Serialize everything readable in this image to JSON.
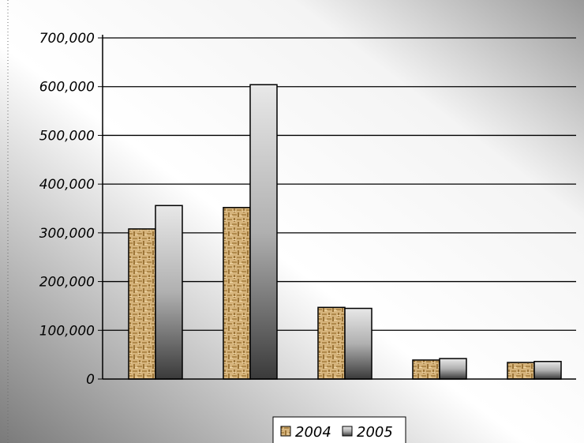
{
  "chart_data": {
    "type": "bar",
    "title": "",
    "xlabel": "",
    "ylabel": "",
    "categories": [
      "",
      "",
      "",
      "",
      ""
    ],
    "series": [
      {
        "name": "2004",
        "values": [
          308000,
          352000,
          147000,
          39000,
          34000
        ],
        "color": "#c9a46b"
      },
      {
        "name": "2005",
        "values": [
          356000,
          604000,
          145000,
          42000,
          36000
        ],
        "color": "#8c8c8c"
      }
    ],
    "ylim": [
      0,
      700000
    ],
    "yticks": [
      "0",
      "100,000",
      "200,000",
      "300,000",
      "400,000",
      "500,000",
      "600,000",
      "700,000"
    ],
    "grid": true,
    "legend_position": "bottom"
  }
}
